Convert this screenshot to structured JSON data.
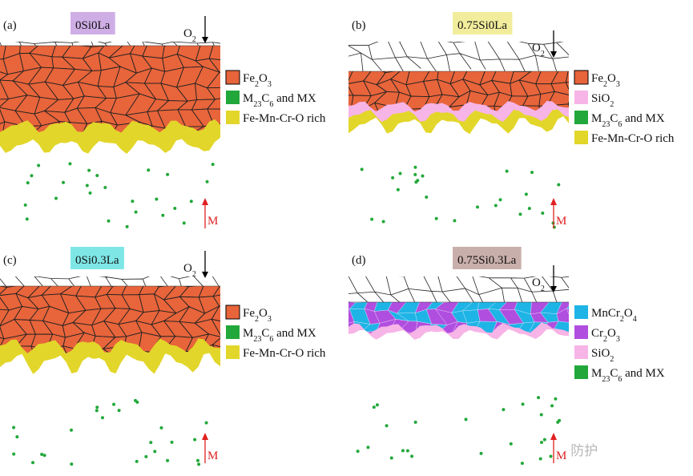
{
  "panels": [
    {
      "label": "(a)",
      "composition": "0Si0La",
      "composition_color": "#cfaee6",
      "oxygen": "O2",
      "metal": "M",
      "legend": [
        {
          "label": "Fe2O3",
          "color": "#e8643a"
        },
        {
          "label": "M23C6 and MX",
          "color": "#22a83a"
        },
        {
          "label": "Fe-Mn-Cr-O rich",
          "color": "#e2d62a"
        }
      ]
    },
    {
      "label": "(b)",
      "composition": "0.75Si0La",
      "composition_color": "#f2ed9c",
      "oxygen": "O2",
      "metal": "M",
      "legend": [
        {
          "label": "Fe2O3",
          "color": "#e8643a"
        },
        {
          "label": "SiO2",
          "color": "#f7b4e6"
        },
        {
          "label": "M23C6 and MX",
          "color": "#22a83a"
        },
        {
          "label": "Fe-Mn-Cr-O rich",
          "color": "#e2d62a"
        }
      ]
    },
    {
      "label": "(c)",
      "composition": "0Si0.3La",
      "composition_color": "#7fe6e6",
      "oxygen": "O2",
      "metal": "M",
      "legend": [
        {
          "label": "Fe2O3",
          "color": "#e8643a"
        },
        {
          "label": "M23C6 and MX",
          "color": "#22a83a"
        },
        {
          "label": "Fe-Mn-Cr-O rich",
          "color": "#e2d62a"
        }
      ]
    },
    {
      "label": "(d)",
      "composition": "0.75Si0.3La",
      "composition_color": "#c9afab",
      "oxygen": "O2",
      "metal": "M",
      "legend": [
        {
          "label": "MnCr2O4",
          "color": "#1eb4e6"
        },
        {
          "label": "Cr2O3",
          "color": "#b04ee0"
        },
        {
          "label": "SiO2",
          "color": "#f7b4e6"
        },
        {
          "label": "M23C6 and MX",
          "color": "#22a83a"
        }
      ]
    }
  ],
  "watermark": "公众号 · 材料强化与防护"
}
